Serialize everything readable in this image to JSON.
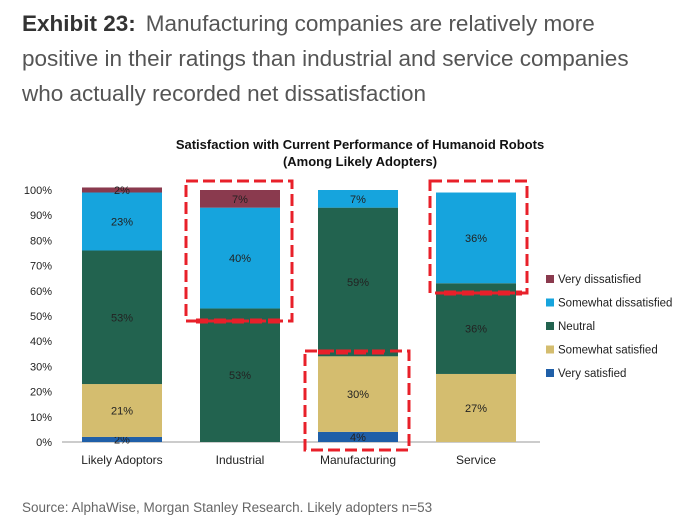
{
  "headline": {
    "exhibit": "Exhibit 23:",
    "text": "Manufacturing companies are relatively more positive in their ratings than industrial and service companies who actually recorded net dissatisfaction"
  },
  "source": "Source: AlphaWise, Morgan Stanley Research. Likely adopters n=53",
  "chart_data": {
    "type": "bar",
    "stacked": true,
    "title": "Satisfaction with Current Performance of Humanoid Robots",
    "subtitle": "(Among Likely Adopters)",
    "categories": [
      "Likely Adoptors",
      "Industrial",
      "Manufacturing",
      "Service"
    ],
    "ylim": [
      0,
      100
    ],
    "yticks": [
      "0%",
      "10%",
      "20%",
      "30%",
      "40%",
      "50%",
      "60%",
      "70%",
      "80%",
      "90%",
      "100%"
    ],
    "legend_position": "right",
    "series": [
      {
        "name": "Very satisfied",
        "color": "#1f5fa8",
        "values": [
          2,
          0,
          4,
          0
        ],
        "labels": [
          "2%",
          "",
          "4%",
          ""
        ]
      },
      {
        "name": "Somewhat satisfied",
        "color": "#d4bd6f",
        "values": [
          21,
          0,
          30,
          27
        ],
        "labels": [
          "21%",
          "",
          "30%",
          "27%"
        ]
      },
      {
        "name": "Neutral",
        "color": "#22634f",
        "values": [
          53,
          53,
          59,
          36
        ],
        "labels": [
          "53%",
          "53%",
          "59%",
          "36%"
        ]
      },
      {
        "name": "Somewhat dissatisfied",
        "color": "#16a4dd",
        "values": [
          23,
          40,
          7,
          36
        ],
        "labels": [
          "23%",
          "40%",
          "7%",
          "36%"
        ]
      },
      {
        "name": "Very dissatisfied",
        "color": "#8a3a4e",
        "values": [
          2,
          7,
          0,
          0
        ],
        "labels": [
          "2%",
          "7%",
          "",
          ""
        ]
      }
    ],
    "highlight_color": "#e8202a"
  }
}
